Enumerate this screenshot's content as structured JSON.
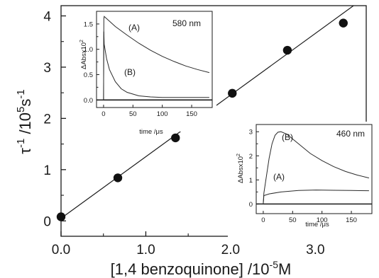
{
  "chart_data": [
    {
      "type": "scatter",
      "xlabel": "[1,4 benzoquinone] /10",
      "xlabel_sup": "-5",
      "xlabel_tail": "M",
      "ylabel_parts": [
        {
          "t": "τ",
          "sup": false
        },
        {
          "t": "-1",
          "sup": true
        },
        {
          "t": " /10",
          "sup": false
        },
        {
          "t": "5",
          "sup": true
        },
        {
          "t": "s",
          "sup": false
        },
        {
          "t": "-1",
          "sup": true
        }
      ],
      "xlim": [
        0,
        3.6
      ],
      "ylim": [
        -0.3,
        4.2
      ],
      "x_ticks": [
        0,
        1,
        2,
        3
      ],
      "x_tick_labels": [
        "0.0",
        "1.0",
        "2.0",
        "3.0"
      ],
      "x_minor_ticks": [
        0.5,
        1.5,
        2.5,
        3.5
      ],
      "y_ticks": [
        0,
        1,
        2,
        3,
        4
      ],
      "y_tick_labels": [
        "0",
        "1",
        "2",
        "3",
        "4"
      ],
      "y_minor_ticks": [
        0.5,
        1.5,
        2.5,
        3.5
      ],
      "series": [
        {
          "x": [
            0.0,
            0.67,
            1.35,
            2.02,
            2.67,
            3.33
          ],
          "y": [
            0.08,
            0.84,
            1.62,
            2.49,
            3.33,
            3.86
          ]
        }
      ],
      "fit_line": {
        "x": [
          0.0,
          3.6
        ],
        "y": [
          0.05,
          4.38
        ]
      },
      "grid": false
    },
    {
      "type": "line",
      "annotation": "580 nm",
      "xlabel": "time /μs",
      "ylabel": "ΔAbsx10",
      "ylabel_sup": "2",
      "xlim": [
        -12,
        185
      ],
      "ylim": [
        -0.15,
        1.75
      ],
      "x_ticks": [
        0,
        50,
        100,
        150
      ],
      "x_tick_labels": [
        "0",
        "50",
        "100",
        "150"
      ],
      "y_ticks": [
        0.0,
        0.5,
        1.0,
        1.5
      ],
      "y_tick_labels": [
        "0.0",
        "0.5",
        "1.0",
        "1.5"
      ],
      "series": [
        {
          "label": "(A)",
          "x": [
            -10,
            0,
            0.5,
            1,
            20,
            40,
            60,
            80,
            100,
            120,
            140,
            160,
            180
          ],
          "y": [
            0.0,
            0.0,
            1.6,
            1.65,
            1.45,
            1.28,
            1.12,
            0.98,
            0.86,
            0.76,
            0.67,
            0.6,
            0.54
          ]
        },
        {
          "label": "(B)",
          "x": [
            -10,
            0,
            0.5,
            1,
            5,
            10,
            20,
            30,
            40,
            60,
            80,
            100,
            140,
            180
          ],
          "y": [
            0.0,
            0.0,
            1.35,
            1.1,
            0.82,
            0.6,
            0.36,
            0.22,
            0.15,
            0.08,
            0.06,
            0.05,
            0.05,
            0.05
          ]
        }
      ],
      "grid": false
    },
    {
      "type": "line",
      "annotation": "460 nm",
      "xlabel": "time /μs",
      "ylabel": "ΔAbsx10",
      "ylabel_sup": "2",
      "xlim": [
        -12,
        185
      ],
      "ylim": [
        -0.4,
        3.3
      ],
      "x_ticks": [
        0,
        50,
        100,
        150
      ],
      "x_tick_labels": [
        "0",
        "50",
        "100",
        "150"
      ],
      "y_ticks": [
        0,
        1,
        2,
        3
      ],
      "y_tick_labels": [
        "0",
        "1",
        "2",
        "3"
      ],
      "series": [
        {
          "label": "(B)",
          "x": [
            -10,
            0,
            1,
            5,
            10,
            15,
            20,
            25,
            30,
            40,
            60,
            80,
            100,
            120,
            140,
            160,
            180
          ],
          "y": [
            0.0,
            0.0,
            0.45,
            1.1,
            1.9,
            2.5,
            2.85,
            2.98,
            3.0,
            2.9,
            2.5,
            2.1,
            1.8,
            1.55,
            1.35,
            1.2,
            1.08
          ]
        },
        {
          "label": "(A)",
          "x": [
            -10,
            0,
            1,
            10,
            30,
            60,
            90,
            120,
            150,
            180
          ],
          "y": [
            0.0,
            0.0,
            0.35,
            0.42,
            0.5,
            0.56,
            0.58,
            0.57,
            0.56,
            0.55
          ]
        }
      ],
      "grid": false
    }
  ]
}
